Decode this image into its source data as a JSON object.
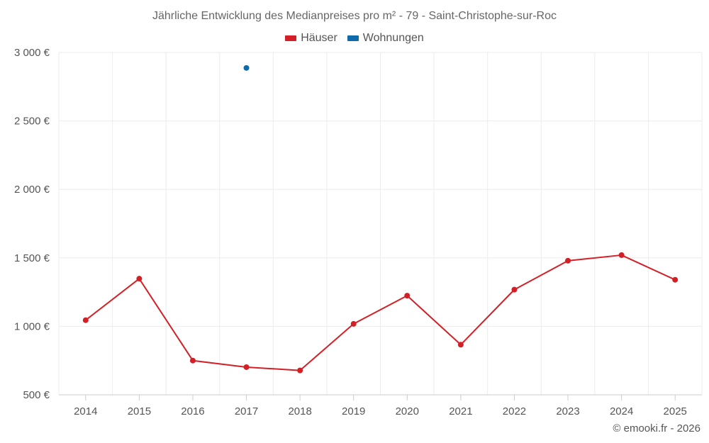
{
  "chart_data": {
    "type": "line",
    "title": "Jährliche Entwicklung des Medianpreises pro m² - 79 - Saint-Christophe-sur-Roc",
    "categories": [
      "2014",
      "2015",
      "2016",
      "2017",
      "2018",
      "2019",
      "2020",
      "2021",
      "2022",
      "2023",
      "2024",
      "2025"
    ],
    "y_ticks": [
      500,
      1000,
      1500,
      2000,
      2500,
      3000
    ],
    "y_tick_labels": [
      "500 €",
      "1 000 €",
      "1 500 €",
      "2 000 €",
      "2 500 €",
      "3 000 €"
    ],
    "ylim": [
      500,
      3000
    ],
    "xlabel": "",
    "ylabel": "",
    "legend_position": "top-center",
    "series": [
      {
        "name": "Häuser",
        "color": "#d32027",
        "values": [
          1045,
          1348,
          750,
          702,
          678,
          1018,
          1224,
          866,
          1268,
          1479,
          1520,
          1340
        ]
      },
      {
        "name": "Wohnungen",
        "color": "#0e6aa8",
        "values": [
          null,
          null,
          null,
          2887,
          null,
          null,
          null,
          null,
          null,
          null,
          null,
          null
        ]
      }
    ],
    "credit": "© emooki.fr - 2026"
  }
}
